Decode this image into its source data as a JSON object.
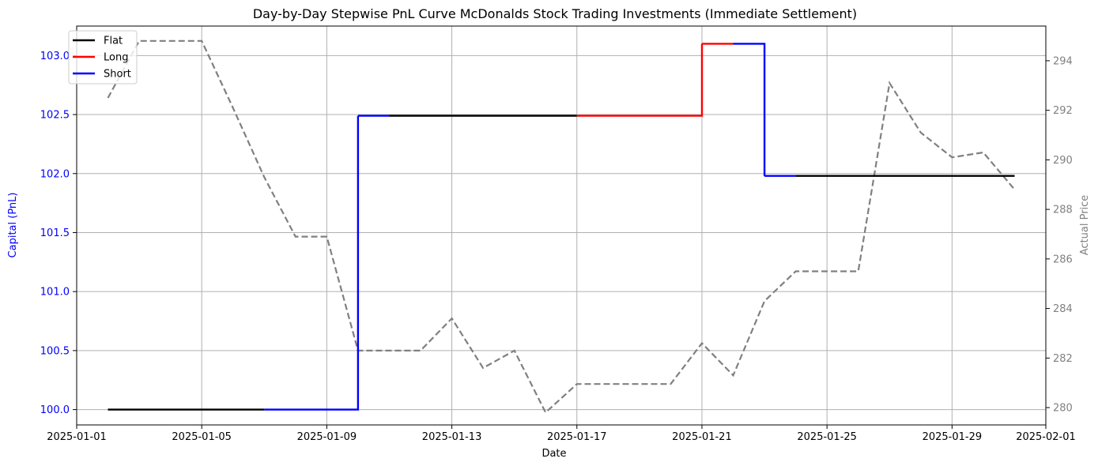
{
  "chart_data": {
    "type": "line",
    "title": "Day-by-Day Stepwise PnL Curve McDonalds Stock Trading Investments (Immediate Settlement)",
    "xlabel": "Date",
    "ylabel_left": "Capital (PnL)",
    "ylabel_right": "Actual Price",
    "xlim": [
      "2025-01-01",
      "2025-02-01"
    ],
    "ylim_left": [
      99.87,
      103.25
    ],
    "ylim_right": [
      279.3,
      295.4
    ],
    "x_ticks": [
      "2025-01-01",
      "2025-01-05",
      "2025-01-09",
      "2025-01-13",
      "2025-01-17",
      "2025-01-21",
      "2025-01-25",
      "2025-01-29",
      "2025-02-01"
    ],
    "y_ticks_left": [
      "100.0",
      "100.5",
      "101.0",
      "101.5",
      "102.0",
      "102.5",
      "103.0"
    ],
    "y_ticks_right": [
      "280",
      "282",
      "284",
      "286",
      "288",
      "290",
      "292",
      "294"
    ],
    "grid": true,
    "legend_position": "top-left",
    "legend": [
      {
        "label": "Flat",
        "color": "#000000"
      },
      {
        "label": "Long",
        "color": "#ff0000"
      },
      {
        "label": "Short",
        "color": "#0000ff"
      }
    ],
    "colors": {
      "left_axis": "#0000ff",
      "right_axis": "#808080",
      "price_line": "#808080",
      "grid": "#b0b0b0"
    },
    "capital_series": {
      "dates": [
        "2025-01-02",
        "2025-01-07",
        "2025-01-10",
        "2025-01-11",
        "2025-01-17",
        "2025-01-21",
        "2025-01-22",
        "2025-01-23",
        "2025-01-24",
        "2025-01-31"
      ],
      "values": [
        100.0,
        100.0,
        102.49,
        102.49,
        102.49,
        103.1,
        103.1,
        101.98,
        101.98,
        101.98
      ],
      "positions": [
        "Flat",
        "Short",
        "Short",
        "Flat",
        "Long",
        "Long",
        "Short",
        "Short",
        "Flat",
        "Flat"
      ]
    },
    "price_series": {
      "dates": [
        "2025-01-02",
        "2025-01-03",
        "2025-01-04",
        "2025-01-05",
        "2025-01-06",
        "2025-01-07",
        "2025-01-08",
        "2025-01-09",
        "2025-01-10",
        "2025-01-11",
        "2025-01-12",
        "2025-01-13",
        "2025-01-14",
        "2025-01-15",
        "2025-01-16",
        "2025-01-17",
        "2025-01-18",
        "2025-01-19",
        "2025-01-20",
        "2025-01-21",
        "2025-01-22",
        "2025-01-23",
        "2025-01-24",
        "2025-01-25",
        "2025-01-26",
        "2025-01-27",
        "2025-01-28",
        "2025-01-29",
        "2025-01-30",
        "2025-01-31"
      ],
      "values": [
        292.5,
        294.8,
        294.8,
        294.8,
        292.1,
        289.3,
        286.9,
        286.9,
        282.3,
        282.3,
        282.3,
        283.6,
        281.6,
        282.3,
        279.8,
        280.95,
        280.95,
        280.95,
        280.95,
        282.6,
        281.3,
        284.3,
        285.5,
        285.5,
        285.5,
        293.1,
        291.1,
        290.1,
        290.3,
        288.8
      ]
    }
  }
}
